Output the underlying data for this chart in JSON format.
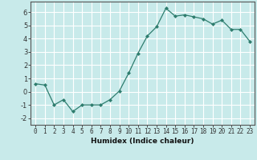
{
  "x_values": [
    0,
    1,
    2,
    3,
    4,
    5,
    6,
    7,
    8,
    9,
    10,
    11,
    12,
    13,
    14,
    15,
    16,
    17,
    18,
    19,
    20,
    21,
    22,
    23
  ],
  "y_values": [
    0.6,
    0.5,
    -1.0,
    -0.6,
    -1.5,
    -1.0,
    -1.0,
    -1.0,
    -0.6,
    0.05,
    1.4,
    2.9,
    4.2,
    4.9,
    6.3,
    5.7,
    5.8,
    5.65,
    5.5,
    5.1,
    5.4,
    4.7,
    4.7,
    3.8
  ],
  "line_color": "#2e7d6e",
  "marker": "D",
  "marker_size": 2,
  "bg_color": "#c8eaea",
  "grid_color": "#ffffff",
  "xlabel": "Humidex (Indice chaleur)",
  "ylim": [
    -2.5,
    6.8
  ],
  "xlim": [
    -0.5,
    23.5
  ],
  "yticks": [
    -2,
    -1,
    0,
    1,
    2,
    3,
    4,
    5,
    6
  ],
  "xticks": [
    0,
    1,
    2,
    3,
    4,
    5,
    6,
    7,
    8,
    9,
    10,
    11,
    12,
    13,
    14,
    15,
    16,
    17,
    18,
    19,
    20,
    21,
    22,
    23
  ],
  "xlabel_fontsize": 6.5,
  "tick_fontsize": 5.5
}
